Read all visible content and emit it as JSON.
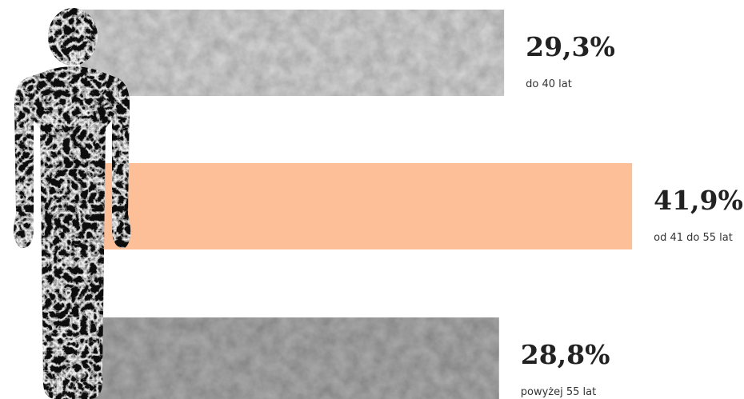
{
  "chart_data": {
    "type": "bar",
    "orientation": "horizontal",
    "categories": [
      "do 40 lat",
      "od 41 do 55 lat",
      "powyżej 55 lat"
    ],
    "values": [
      29.3,
      41.9,
      28.8
    ],
    "value_labels": [
      "29,3%",
      "41,9%",
      "28,8%"
    ],
    "colors": [
      "#d2d2d2",
      "#fdbf98",
      "#a9a9a9"
    ],
    "textured": [
      true,
      false,
      true
    ]
  }
}
